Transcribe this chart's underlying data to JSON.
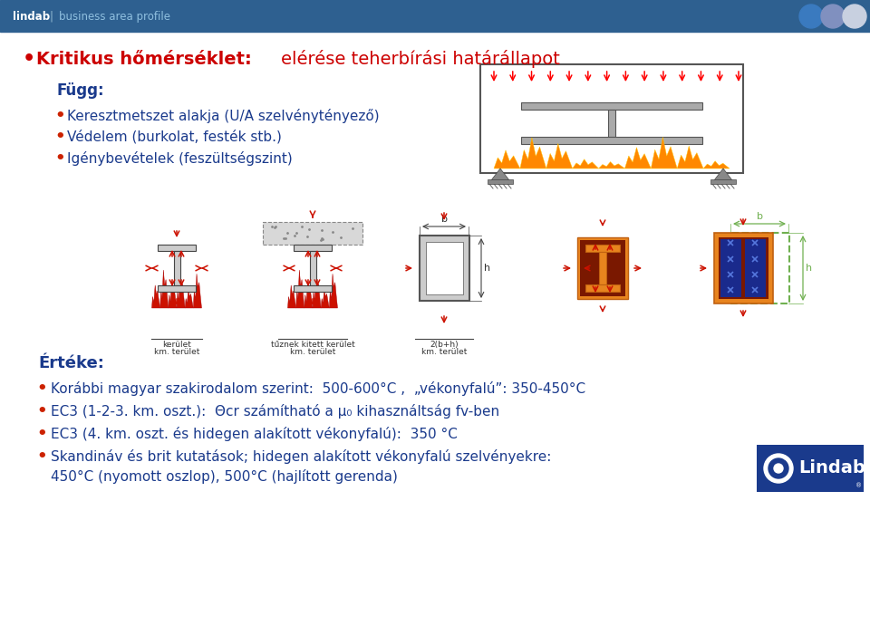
{
  "header_bg": "#2e6090",
  "header_text_color": "#ffffff",
  "header_profile_color": "#90c0e0",
  "bg_color": "#ffffff",
  "title_red": "#cc0000",
  "title_bold": "Kritikus hőmérséklet:",
  "title_normal": "elérése teherbírási határállapot",
  "blue": "#1a3a8c",
  "bullet_color": "#cc2200",
  "fugg_text": "Függ:",
  "bullet1": "Keresztmetszet alakja (U/A szelvénytényező)",
  "bullet2": "Védelem (burkolat, festék stb.)",
  "bullet3": "Igénybevételek (feszültségszint)",
  "erteke_text": "Értéke:",
  "line1": "Korábbi magyar szakirodalom szerint:  500-600°C ,  „vékonyfalú”: 350-450°C",
  "line2": "EC3 (1-2-3. km. oszt.):  Θcr számítható a μ₀ kihasználtság fv-ben",
  "line3": "EC3 (4. km. oszt. és hidegen alakított vékonyfalú):  350 °C",
  "line4a": "Skandináv és brit kutatások; hidegen alakított vékonyfalú szelvényekre:",
  "line4b": "450°C (nyomott oszlop), 500°C (hajlított gerenda)",
  "circle_colors": [
    "#3a7abf",
    "#8090bf",
    "#c8d0e0"
  ],
  "orange_casing": "#e8841e",
  "dark_red_fill": "#7a1800",
  "blue_fill": "#1a2a8c",
  "green_dashed": "#70b050",
  "flame_color": "#cc1100",
  "arrow_color": "#cc1100"
}
